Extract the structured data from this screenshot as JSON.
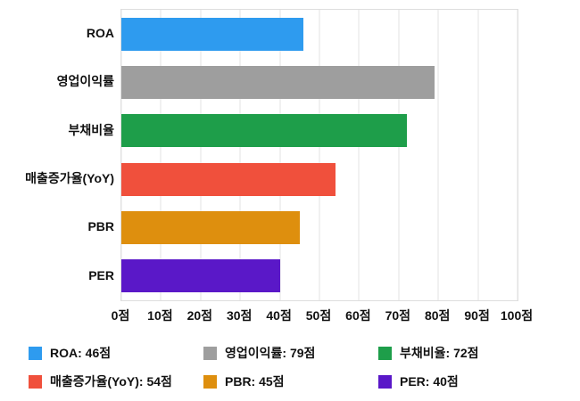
{
  "chart_data": {
    "type": "bar",
    "orientation": "horizontal",
    "title": "",
    "categories": [
      "ROA",
      "영업이익률",
      "부채비율",
      "매출증가율(YoY)",
      "PBR",
      "PER"
    ],
    "values": [
      46,
      79,
      72,
      54,
      45,
      40
    ],
    "colors": [
      "#2e9bef",
      "#9e9e9e",
      "#1e9e4a",
      "#f0503c",
      "#de8f0e",
      "#5a18c8"
    ],
    "value_suffix": "점",
    "xlim": [
      0,
      100
    ],
    "x_ticks": [
      "0점",
      "10점",
      "20점",
      "30점",
      "40점",
      "50점",
      "60점",
      "70점",
      "80점",
      "90점",
      "100점"
    ],
    "grid": true,
    "legend_position": "bottom"
  },
  "legend": {
    "items": [
      {
        "label": "ROA: 46점",
        "color": "#2e9bef"
      },
      {
        "label": "영업이익률: 79점",
        "color": "#9e9e9e"
      },
      {
        "label": "부채비율: 72점",
        "color": "#1e9e4a"
      },
      {
        "label": "매출증가율(YoY): 54점",
        "color": "#f0503c"
      },
      {
        "label": "PBR: 45점",
        "color": "#de8f0e"
      },
      {
        "label": "PER: 40점",
        "color": "#5a18c8"
      }
    ]
  }
}
